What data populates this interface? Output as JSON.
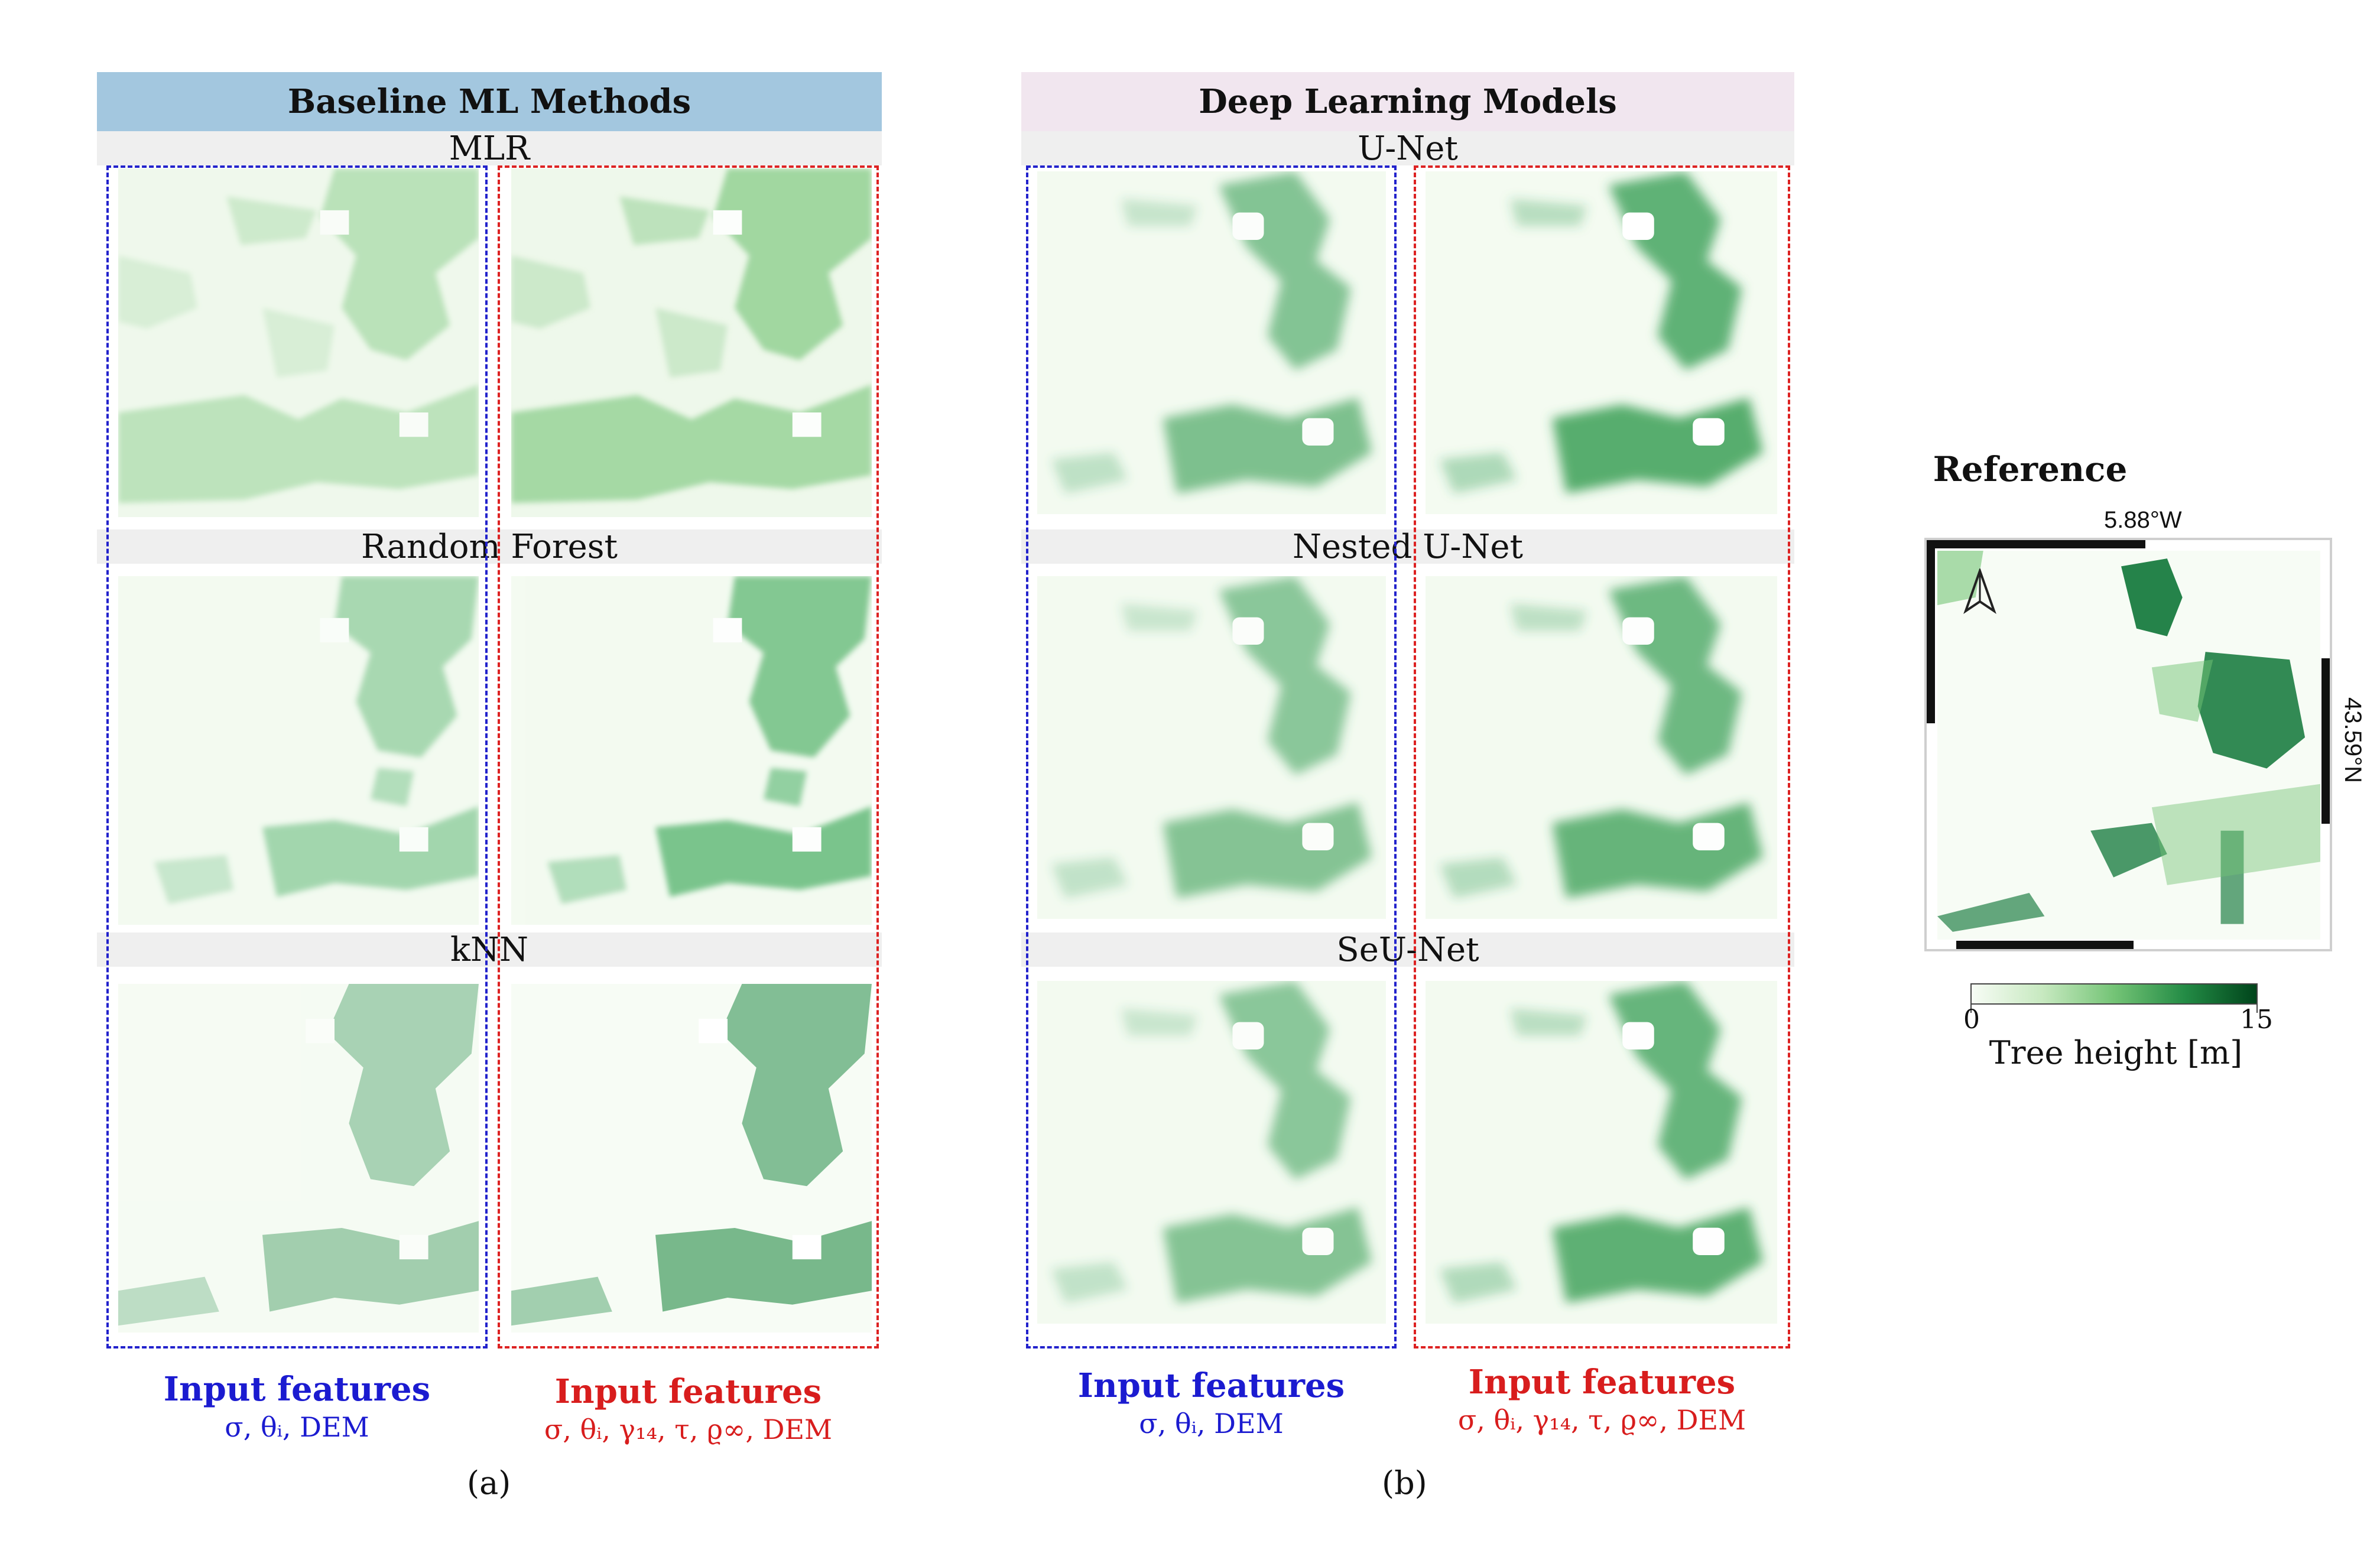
{
  "colors": {
    "baseline_header_bg": "#a3c7df",
    "deep_header_bg": "#f1e6ef",
    "model_label_bg": "#efefef",
    "input_blue": "#1b1bd0",
    "input_red": "#d81d1d",
    "colormap_low": "#f7fcf5",
    "colormap_high": "#00441b"
  },
  "panel_a": {
    "header": "Baseline ML Methods",
    "models": [
      {
        "label": "MLR"
      },
      {
        "label": "Random Forest"
      },
      {
        "label": "kNN"
      }
    ],
    "blue_caption": "Input features",
    "blue_features": "σ, θᵢ, DEM",
    "red_caption": "Input features",
    "red_features": "σ, θᵢ, γ₁₄, τ, ϱ∞, DEM",
    "panel_label": "(a)"
  },
  "panel_b": {
    "header": "Deep Learning Models",
    "models": [
      {
        "label": "U-Net"
      },
      {
        "label": "Nested U-Net"
      },
      {
        "label": "SeU-Net"
      }
    ],
    "blue_caption": "Input features",
    "blue_features": "σ, θᵢ, DEM",
    "red_caption": "Input features",
    "red_features": "σ, θᵢ, γ₁₄, τ, ϱ∞, DEM",
    "panel_label": "(b)"
  },
  "reference": {
    "title": "Reference",
    "lon_label": "5.88°W",
    "lat_label": "43.59°N",
    "north_arrow": "north-arrow-icon"
  },
  "colorbar": {
    "min_label": "0",
    "max_label": "15",
    "title": "Tree height [m]"
  }
}
